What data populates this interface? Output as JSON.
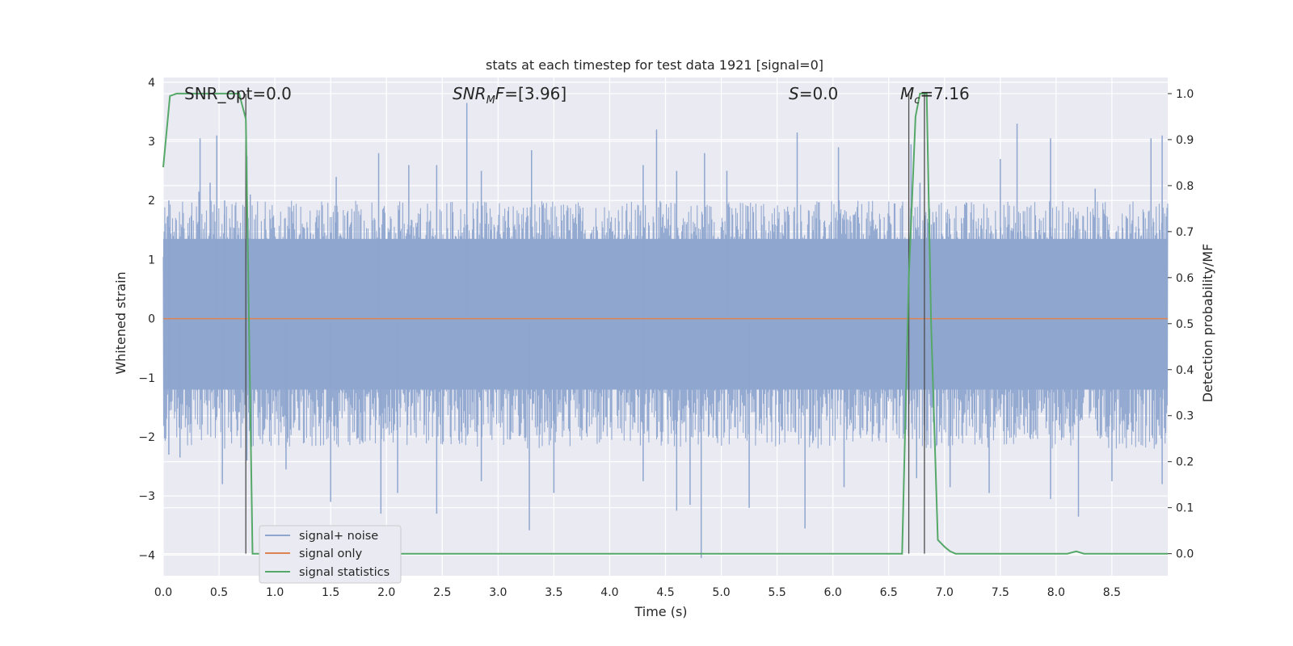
{
  "chart_data": {
    "type": "line",
    "title": "stats at each timestep for test data 1921 [signal=0]",
    "xlabel": "Time (s)",
    "ylabel_left": "Whitened strain",
    "ylabel_right": "Detection probability/MF",
    "xlim": [
      0.0,
      9.0
    ],
    "ylim_left": [
      -4.35,
      4.08
    ],
    "ylim_right": [
      -0.048,
      1.035
    ],
    "x_ticks": [
      "0.0",
      "0.5",
      "1.0",
      "1.5",
      "2.0",
      "2.5",
      "3.0",
      "3.5",
      "4.0",
      "4.5",
      "5.0",
      "5.5",
      "6.0",
      "6.5",
      "7.0",
      "7.5",
      "8.0",
      "8.5"
    ],
    "y_ticks_left": [
      "−4",
      "−3",
      "−2",
      "−1",
      "0",
      "1",
      "2",
      "3",
      "4"
    ],
    "y_ticks_right": [
      "0.0",
      "0.1",
      "0.2",
      "0.3",
      "0.4",
      "0.5",
      "0.6",
      "0.7",
      "0.8",
      "0.9",
      "1.0"
    ],
    "grid": true,
    "legend_position": "lower-left",
    "annotations": [
      {
        "plain": "SNR_opt=0.0"
      },
      {
        "italic": "SNR",
        "sub": "M",
        "rest_italic": "F",
        "plain": "=[3.96]"
      },
      {
        "italic": "S",
        "plain": "=0.0"
      },
      {
        "italic": "M",
        "sub": "c",
        "plain": "=7.16"
      }
    ],
    "series": [
      {
        "name": "signal+ noise",
        "axis": "left",
        "color": "#8fa6cf",
        "description_stats": {
          "typical_min": -2.2,
          "typical_max": 2.0
        },
        "spikes_up": [
          [
            0.05,
            2.0
          ],
          [
            0.32,
            2.15
          ],
          [
            0.33,
            3.05
          ],
          [
            0.42,
            2.3
          ],
          [
            0.48,
            3.1
          ],
          [
            0.55,
            2.0
          ],
          [
            0.75,
            2.75
          ],
          [
            0.78,
            2.1
          ],
          [
            1.55,
            2.4
          ],
          [
            1.93,
            2.8
          ],
          [
            2.2,
            2.6
          ],
          [
            2.45,
            2.6
          ],
          [
            2.72,
            3.65
          ],
          [
            2.85,
            2.5
          ],
          [
            3.3,
            2.85
          ],
          [
            4.3,
            2.6
          ],
          [
            4.42,
            3.2
          ],
          [
            4.6,
            2.5
          ],
          [
            4.85,
            2.8
          ],
          [
            5.05,
            2.5
          ],
          [
            5.68,
            3.15
          ],
          [
            6.05,
            2.9
          ],
          [
            6.7,
            2.95
          ],
          [
            6.78,
            2.3
          ],
          [
            7.5,
            2.7
          ],
          [
            7.65,
            3.3
          ],
          [
            7.95,
            3.05
          ],
          [
            8.35,
            2.2
          ],
          [
            8.85,
            3.05
          ],
          [
            8.95,
            3.1
          ]
        ],
        "spikes_down": [
          [
            0.05,
            -2.3
          ],
          [
            0.15,
            -2.35
          ],
          [
            0.53,
            -2.8
          ],
          [
            0.75,
            -2.4
          ],
          [
            1.1,
            -2.55
          ],
          [
            1.5,
            -3.1
          ],
          [
            1.95,
            -3.3
          ],
          [
            2.1,
            -2.95
          ],
          [
            2.45,
            -3.3
          ],
          [
            2.85,
            -2.75
          ],
          [
            3.28,
            -3.58
          ],
          [
            3.5,
            -2.95
          ],
          [
            4.3,
            -2.75
          ],
          [
            4.6,
            -3.25
          ],
          [
            4.72,
            -3.15
          ],
          [
            4.82,
            -4.05
          ],
          [
            5.25,
            -3.2
          ],
          [
            5.75,
            -3.55
          ],
          [
            6.1,
            -2.85
          ],
          [
            6.75,
            -2.7
          ],
          [
            7.05,
            -2.85
          ],
          [
            7.4,
            -2.95
          ],
          [
            7.95,
            -3.05
          ],
          [
            8.2,
            -3.35
          ],
          [
            8.5,
            -2.75
          ],
          [
            8.95,
            -2.8
          ]
        ]
      },
      {
        "name": "signal only",
        "axis": "left",
        "color": "#dd8452",
        "x": [
          0.0,
          9.0
        ],
        "y": [
          0.0,
          0.0
        ]
      },
      {
        "name": "signal statistics",
        "axis": "right",
        "color": "#55a868",
        "x": [
          0.0,
          0.06,
          0.12,
          0.5,
          0.68,
          0.74,
          0.8,
          0.86,
          1.0,
          6.62,
          6.68,
          6.74,
          6.78,
          6.84,
          6.88,
          6.94,
          7.0,
          7.05,
          7.1,
          7.2,
          8.1,
          8.18,
          8.25,
          9.0
        ],
        "y": [
          0.84,
          0.995,
          1.0,
          1.0,
          1.0,
          0.945,
          0.0,
          0.0,
          0.0,
          0.0,
          0.6,
          0.95,
          1.0,
          1.0,
          0.5,
          0.03,
          0.015,
          0.005,
          0.0,
          0.0,
          0.0,
          0.005,
          0.0,
          0.0
        ]
      }
    ],
    "vertical_lines": [
      {
        "x": 0.74,
        "y_right": [
          0.0,
          1.0
        ]
      },
      {
        "x": 6.68,
        "y_right": [
          0.0,
          1.0
        ]
      },
      {
        "x": 6.82,
        "y_right": [
          0.0,
          1.0
        ]
      }
    ]
  }
}
